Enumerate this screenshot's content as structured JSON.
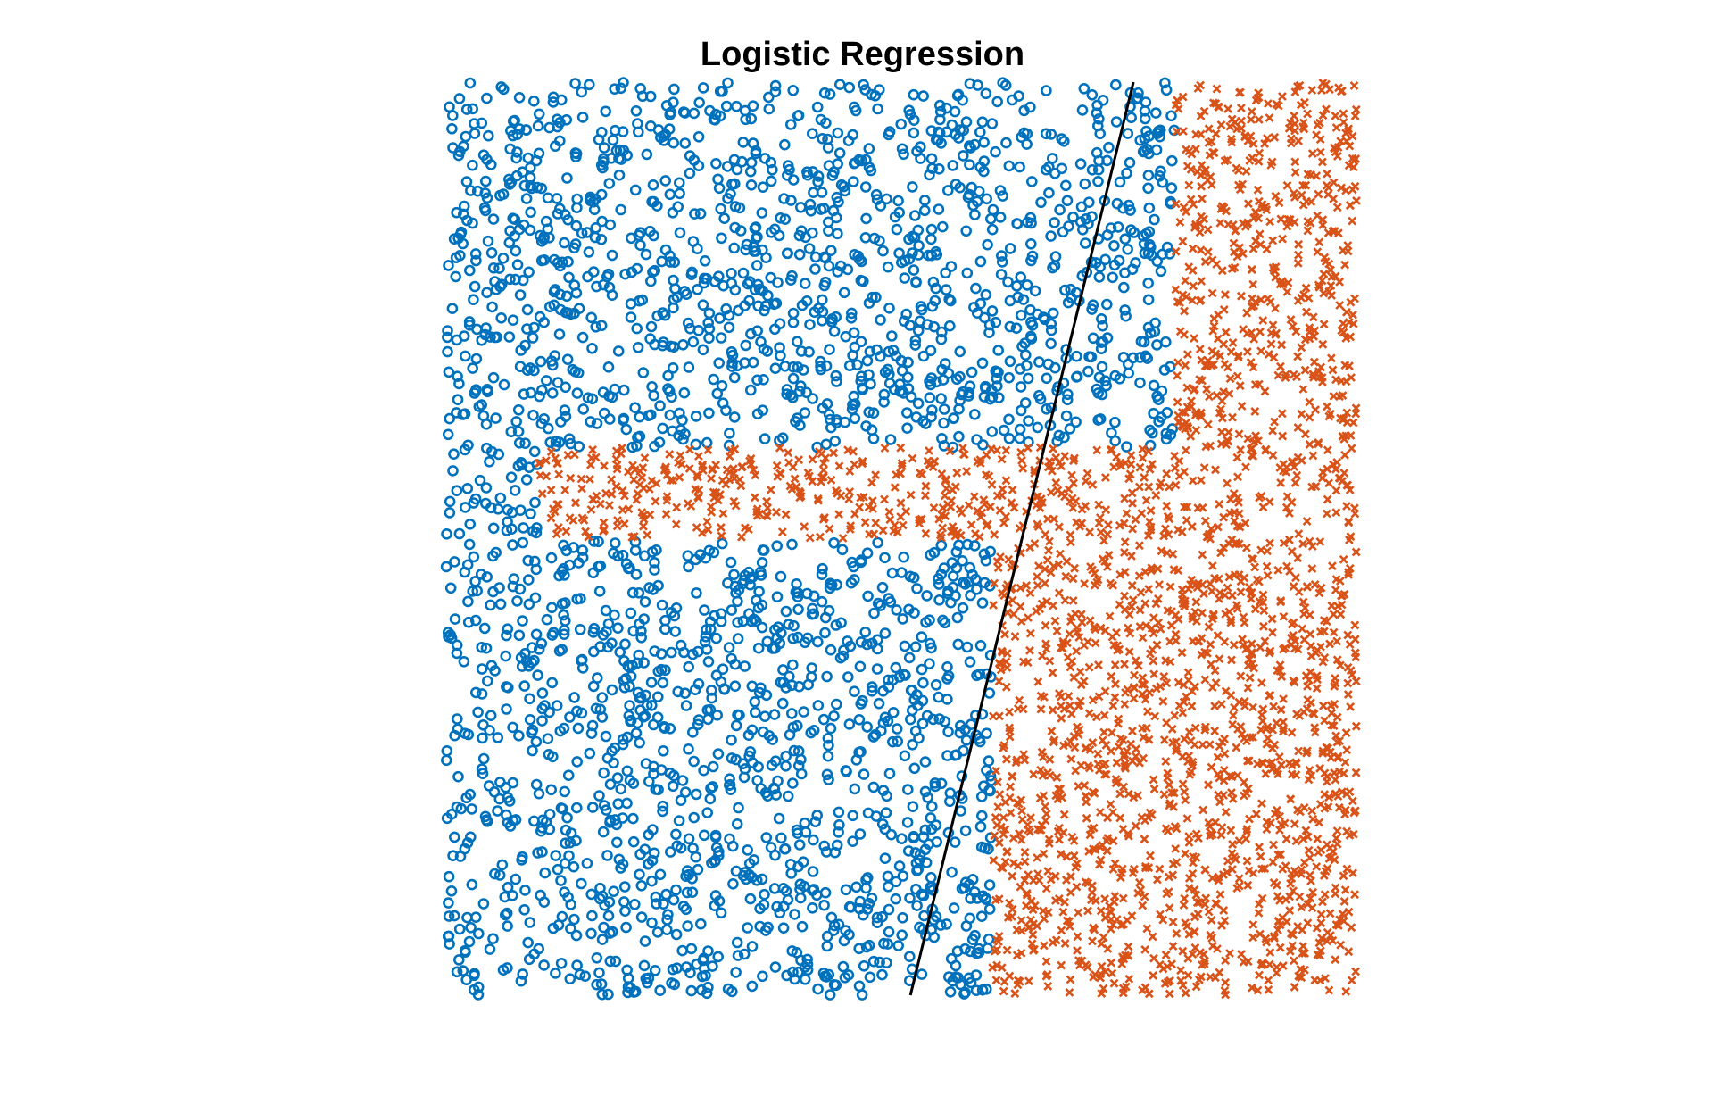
{
  "chart_data": {
    "type": "scatter",
    "title": "Logistic Regression",
    "xlabel": "",
    "ylabel": "",
    "xlim": [
      0,
      1
    ],
    "ylim": [
      0,
      1
    ],
    "grid": false,
    "axes_visible": false,
    "series": [
      {
        "marker": "o",
        "color": "#0072BD",
        "count": 2600
      },
      {
        "marker": "x",
        "color": "#D95319",
        "count": 2400
      }
    ],
    "regions": [
      {
        "class": 0,
        "x": [
          0.0,
          0.8
        ],
        "y": [
          0.6,
          1.0
        ]
      },
      {
        "class": 0,
        "x": [
          0.0,
          0.1
        ],
        "y": [
          0.5,
          0.6
        ]
      },
      {
        "class": 0,
        "x": [
          0.0,
          0.6
        ],
        "y": [
          0.0,
          0.5
        ]
      },
      {
        "class": 1,
        "x": [
          0.8,
          1.0
        ],
        "y": [
          0.6,
          1.0
        ]
      },
      {
        "class": 1,
        "x": [
          0.1,
          1.0
        ],
        "y": [
          0.5,
          0.6
        ]
      },
      {
        "class": 1,
        "x": [
          0.6,
          1.0
        ],
        "y": [
          0.0,
          0.5
        ]
      }
    ],
    "decision_boundary": {
      "color": "#000000",
      "points": [
        [
          0.51,
          0.0
        ],
        [
          0.755,
          1.0
        ]
      ]
    }
  }
}
